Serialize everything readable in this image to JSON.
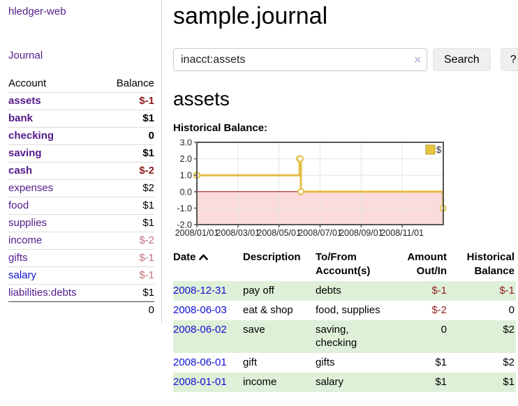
{
  "app": {
    "brand": "hledger-web",
    "nav_journal": "Journal"
  },
  "colors": {
    "link_purple": "#551a8b",
    "link_blue": "#0f0fd0",
    "negative_strong": "#8f1d1d",
    "negative_soft": "#c1717c",
    "row_green": "#dff0d8",
    "chart_line_gold": "#e3bd45",
    "chart_negative_region": "#fbdbdb",
    "chart_zero_line": "#a00000"
  },
  "sidebar": {
    "col_account": "Account",
    "col_balance": "Balance",
    "accounts": [
      {
        "name": "assets",
        "balance": "$-1"
      },
      {
        "name": "bank",
        "balance": "$1"
      },
      {
        "name": "checking",
        "balance": "0"
      },
      {
        "name": "saving",
        "balance": "$1"
      },
      {
        "name": "cash",
        "balance": "$-2"
      },
      {
        "name": "expenses",
        "balance": "$2"
      },
      {
        "name": "food",
        "balance": "$1"
      },
      {
        "name": "supplies",
        "balance": "$1"
      },
      {
        "name": "income",
        "balance": "$-2"
      },
      {
        "name": "gifts",
        "balance": "$-1"
      },
      {
        "name": "salary",
        "balance": "$-1"
      },
      {
        "name": "liabilities:debts",
        "balance": "$1"
      }
    ],
    "total": "0"
  },
  "main": {
    "title": "sample.journal",
    "search": {
      "value": "inacct:assets",
      "clear_icon": "×",
      "button": "Search",
      "help_button": "?"
    },
    "account_heading": "assets",
    "chart_label": "Historical Balance:"
  },
  "chart_data": {
    "type": "line",
    "subtype": "step",
    "title": "Historical Balance",
    "series": [
      {
        "name": "$",
        "points": [
          [
            "2008-01-01",
            1
          ],
          [
            "2008-06-01",
            2
          ],
          [
            "2008-06-02",
            2
          ],
          [
            "2008-06-03",
            0
          ],
          [
            "2008-12-31",
            -1
          ]
        ]
      }
    ],
    "xticks": [
      "2008/01/01",
      "2008/03/01",
      "2008/05/01",
      "2008/07/01",
      "2008/09/01",
      "2008/11/01"
    ],
    "yticks": [
      3.0,
      2.0,
      1.0,
      0.0,
      -1.0,
      -2.0
    ],
    "ylim": [
      -2,
      3
    ],
    "xrange": [
      "2008-01-01",
      "2008-12-31"
    ],
    "grid": true,
    "legend_position": "top-right",
    "colors": {
      "line": "#e3bd45",
      "marker_fill": "#ffffff",
      "legend_fill": "#e9c53e",
      "legend_border": "#b89a2e",
      "negative_region": "#fbdbdb",
      "zero_line": "#a00000"
    }
  },
  "register": {
    "headers": {
      "date": "Date",
      "description": "Description",
      "tofrom": "To/From Account(s)",
      "amount": "Amount Out/In",
      "balance": "Historical Balance"
    },
    "rows": [
      {
        "date": "2008-12-31",
        "description": "pay off",
        "accounts": "debts",
        "amount": "$-1",
        "balance": "$-1"
      },
      {
        "date": "2008-06-03",
        "description": "eat & shop",
        "accounts": "food, supplies",
        "amount": "$-2",
        "balance": "0"
      },
      {
        "date": "2008-06-02",
        "description": "save",
        "accounts": "saving, checking",
        "amount": "0",
        "balance": "$2"
      },
      {
        "date": "2008-06-01",
        "description": "gift",
        "accounts": "gifts",
        "amount": "$1",
        "balance": "$2"
      },
      {
        "date": "2008-01-01",
        "description": "income",
        "accounts": "salary",
        "amount": "$1",
        "balance": "$1"
      }
    ]
  }
}
